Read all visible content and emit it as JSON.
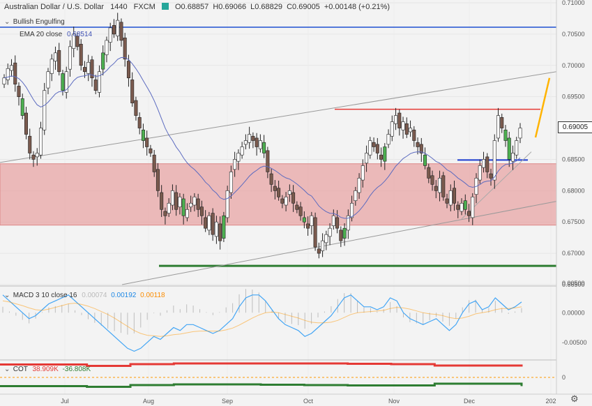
{
  "header": {
    "symbol": "Australian Dollar / U.S. Dollar",
    "interval": "1440",
    "source": "FXCM",
    "open": "O0.68857",
    "high": "H0.69066",
    "low": "L0.68829",
    "close": "C0.69005",
    "change": "+0.00148 (+0.21%)"
  },
  "studies": {
    "pattern": "Bullish Engulfing",
    "ema_label": "EMA 20 close",
    "ema_value": "0.68514",
    "macd_label": "MACD 3 10 close 16",
    "macd_hist": "0.00074",
    "macd_line": "0.00192",
    "macd_signal": "0.00118",
    "cot_label": "COT",
    "cot_long": "38.909K",
    "cot_short": "-36.808K"
  },
  "last_price": "0.69005",
  "colors": {
    "up": "#4caf50",
    "down": "#8d6e63",
    "ema": "#5c6bc0",
    "resistance": "#e53935",
    "support": "#2e7d32",
    "zone": "#e8a5a5",
    "macd": "#42a5f5",
    "signal": "#ff9800",
    "trend_arrow": "#ffb300",
    "top_line": "#1e4fd1"
  },
  "chart_data": [
    {
      "type": "candlestick",
      "title": "Australian Dollar / U.S. Dollar",
      "x_tick_labels": [
        "Jul",
        "Aug",
        "Sep",
        "Oct",
        "Nov",
        "Dec",
        "202"
      ],
      "y_tick_labels": [
        "0.71000",
        "0.70500",
        "0.70000",
        "0.69500",
        "0.69005",
        "0.68500",
        "0.68000",
        "0.67500",
        "0.67000",
        "0.66500"
      ],
      "ylim": [
        0.665,
        0.71
      ],
      "levels": {
        "top_blue": 0.7061,
        "resistance_red": 0.693,
        "support_green": 0.668,
        "neckline_blue": 0.6849,
        "zone": [
          0.6745,
          0.6843
        ]
      },
      "closes": [
        0.698,
        0.6995,
        0.7,
        0.697,
        0.695,
        0.692,
        0.689,
        0.686,
        0.685,
        0.686,
        0.69,
        0.696,
        0.699,
        0.701,
        0.702,
        0.699,
        0.696,
        0.699,
        0.703,
        0.705,
        0.703,
        0.7,
        0.699,
        0.7005,
        0.698,
        0.696,
        0.699,
        0.702,
        0.704,
        0.706,
        0.705,
        0.7072,
        0.704,
        0.701,
        0.698,
        0.694,
        0.692,
        0.69,
        0.688,
        0.687,
        0.686,
        0.683,
        0.68,
        0.677,
        0.676,
        0.678,
        0.68,
        0.677,
        0.679,
        0.676,
        0.677,
        0.678,
        0.679,
        0.677,
        0.676,
        0.674,
        0.676,
        0.673,
        0.675,
        0.672,
        0.676,
        0.68,
        0.683,
        0.685,
        0.686,
        0.687,
        0.688,
        0.689,
        0.688,
        0.687,
        0.688,
        0.686,
        0.683,
        0.681,
        0.68,
        0.679,
        0.678,
        0.679,
        0.68,
        0.678,
        0.677,
        0.676,
        0.675,
        0.674,
        0.676,
        0.671,
        0.67,
        0.672,
        0.673,
        0.674,
        0.676,
        0.674,
        0.672,
        0.674,
        0.676,
        0.678,
        0.68,
        0.682,
        0.684,
        0.686,
        0.688,
        0.687,
        0.686,
        0.685,
        0.687,
        0.689,
        0.691,
        0.692,
        0.69,
        0.691,
        0.689,
        0.69,
        0.688,
        0.687,
        0.686,
        0.684,
        0.682,
        0.681,
        0.68,
        0.682,
        0.679,
        0.678,
        0.68,
        0.678,
        0.677,
        0.678,
        0.677,
        0.676,
        0.679,
        0.682,
        0.684,
        0.685,
        0.683,
        0.682,
        0.688,
        0.692,
        0.69,
        0.688,
        0.685,
        0.686,
        0.688,
        0.69
      ]
    },
    {
      "type": "line",
      "title": "MACD 3 10 close 16",
      "y_tick_labels": [
        "0.00500",
        "0.00000",
        "-0.00500"
      ],
      "ylim": [
        -0.0075,
        0.0045
      ],
      "series": [
        {
          "name": "MACD",
          "values": [
            0.003,
            0.002,
            0.001,
            0.0,
            -0.001,
            -0.0005,
            0.0005,
            0.0015,
            0.002,
            0.0025,
            0.003,
            0.002,
            0.001,
            0.0,
            -0.001,
            -0.002,
            -0.003,
            -0.004,
            -0.005,
            -0.006,
            -0.0065,
            -0.006,
            -0.005,
            -0.004,
            -0.0045,
            -0.0035,
            -0.0025,
            -0.003,
            -0.002,
            -0.002,
            -0.0025,
            -0.003,
            -0.0035,
            -0.003,
            -0.002,
            -0.001,
            0.001,
            0.0025,
            0.003,
            0.003,
            0.002,
            0.0005,
            -0.001,
            -0.002,
            -0.0025,
            -0.003,
            -0.004,
            -0.0035,
            -0.0025,
            -0.0015,
            -0.0005,
            0.001,
            0.0025,
            0.003,
            0.002,
            0.001,
            0.001,
            0.0005,
            0.001,
            0.0025,
            0.002,
            0.0,
            -0.001,
            -0.0015,
            -0.002,
            -0.0015,
            -0.001,
            -0.002,
            -0.003,
            -0.002,
            0.0,
            0.0015,
            0.002,
            0.0005,
            0.001,
            0.0025,
            0.0015,
            0.0005,
            0.001,
            0.0018
          ]
        },
        {
          "name": "Signal",
          "values": [
            0.002,
            0.0018,
            0.0015,
            0.0012,
            0.0008,
            0.0005,
            0.0004,
            0.0006,
            0.0009,
            0.0012,
            0.0015,
            0.0016,
            0.0014,
            0.0011,
            0.0007,
            0.0002,
            -0.0003,
            -0.0009,
            -0.0016,
            -0.0023,
            -0.003,
            -0.0035,
            -0.0038,
            -0.0039,
            -0.004,
            -0.0039,
            -0.0037,
            -0.0036,
            -0.0034,
            -0.0032,
            -0.0031,
            -0.0031,
            -0.0031,
            -0.0031,
            -0.0029,
            -0.0026,
            -0.0021,
            -0.0015,
            -0.0009,
            -0.0004,
            0.0,
            0.0001,
            0.0,
            -0.0003,
            -0.0006,
            -0.0009,
            -0.0013,
            -0.0016,
            -0.0017,
            -0.0017,
            -0.0016,
            -0.0013,
            -0.0008,
            -0.0003,
            0.0,
            0.0001,
            0.0002,
            0.0003,
            0.0004,
            0.0007,
            0.0009,
            0.0008,
            0.0006,
            0.0003,
            0.0,
            -0.0002,
            -0.0003,
            -0.0005,
            -0.0008,
            -0.001,
            -0.0009,
            -0.0006,
            -0.0002,
            0.0,
            0.0002,
            0.0005,
            0.0007,
            0.0007,
            0.0008,
            0.001
          ]
        }
      ]
    },
    {
      "type": "line",
      "title": "COT",
      "y_tick_labels": [
        "0"
      ],
      "series": [
        {
          "name": "Long",
          "values": [
            38.9,
            38.9,
            38.5,
            39.0,
            39.2,
            39.2,
            39.2,
            39.2,
            39.1,
            39.0,
            38.6,
            38.6,
            38.9
          ]
        },
        {
          "name": "Short",
          "values": [
            -36.8,
            -36.8,
            -37.0,
            -36.5,
            -36.3,
            -36.3,
            -36.4,
            -36.5,
            -36.6,
            -36.6,
            -36.1,
            -36.1,
            -36.8
          ]
        }
      ]
    }
  ]
}
